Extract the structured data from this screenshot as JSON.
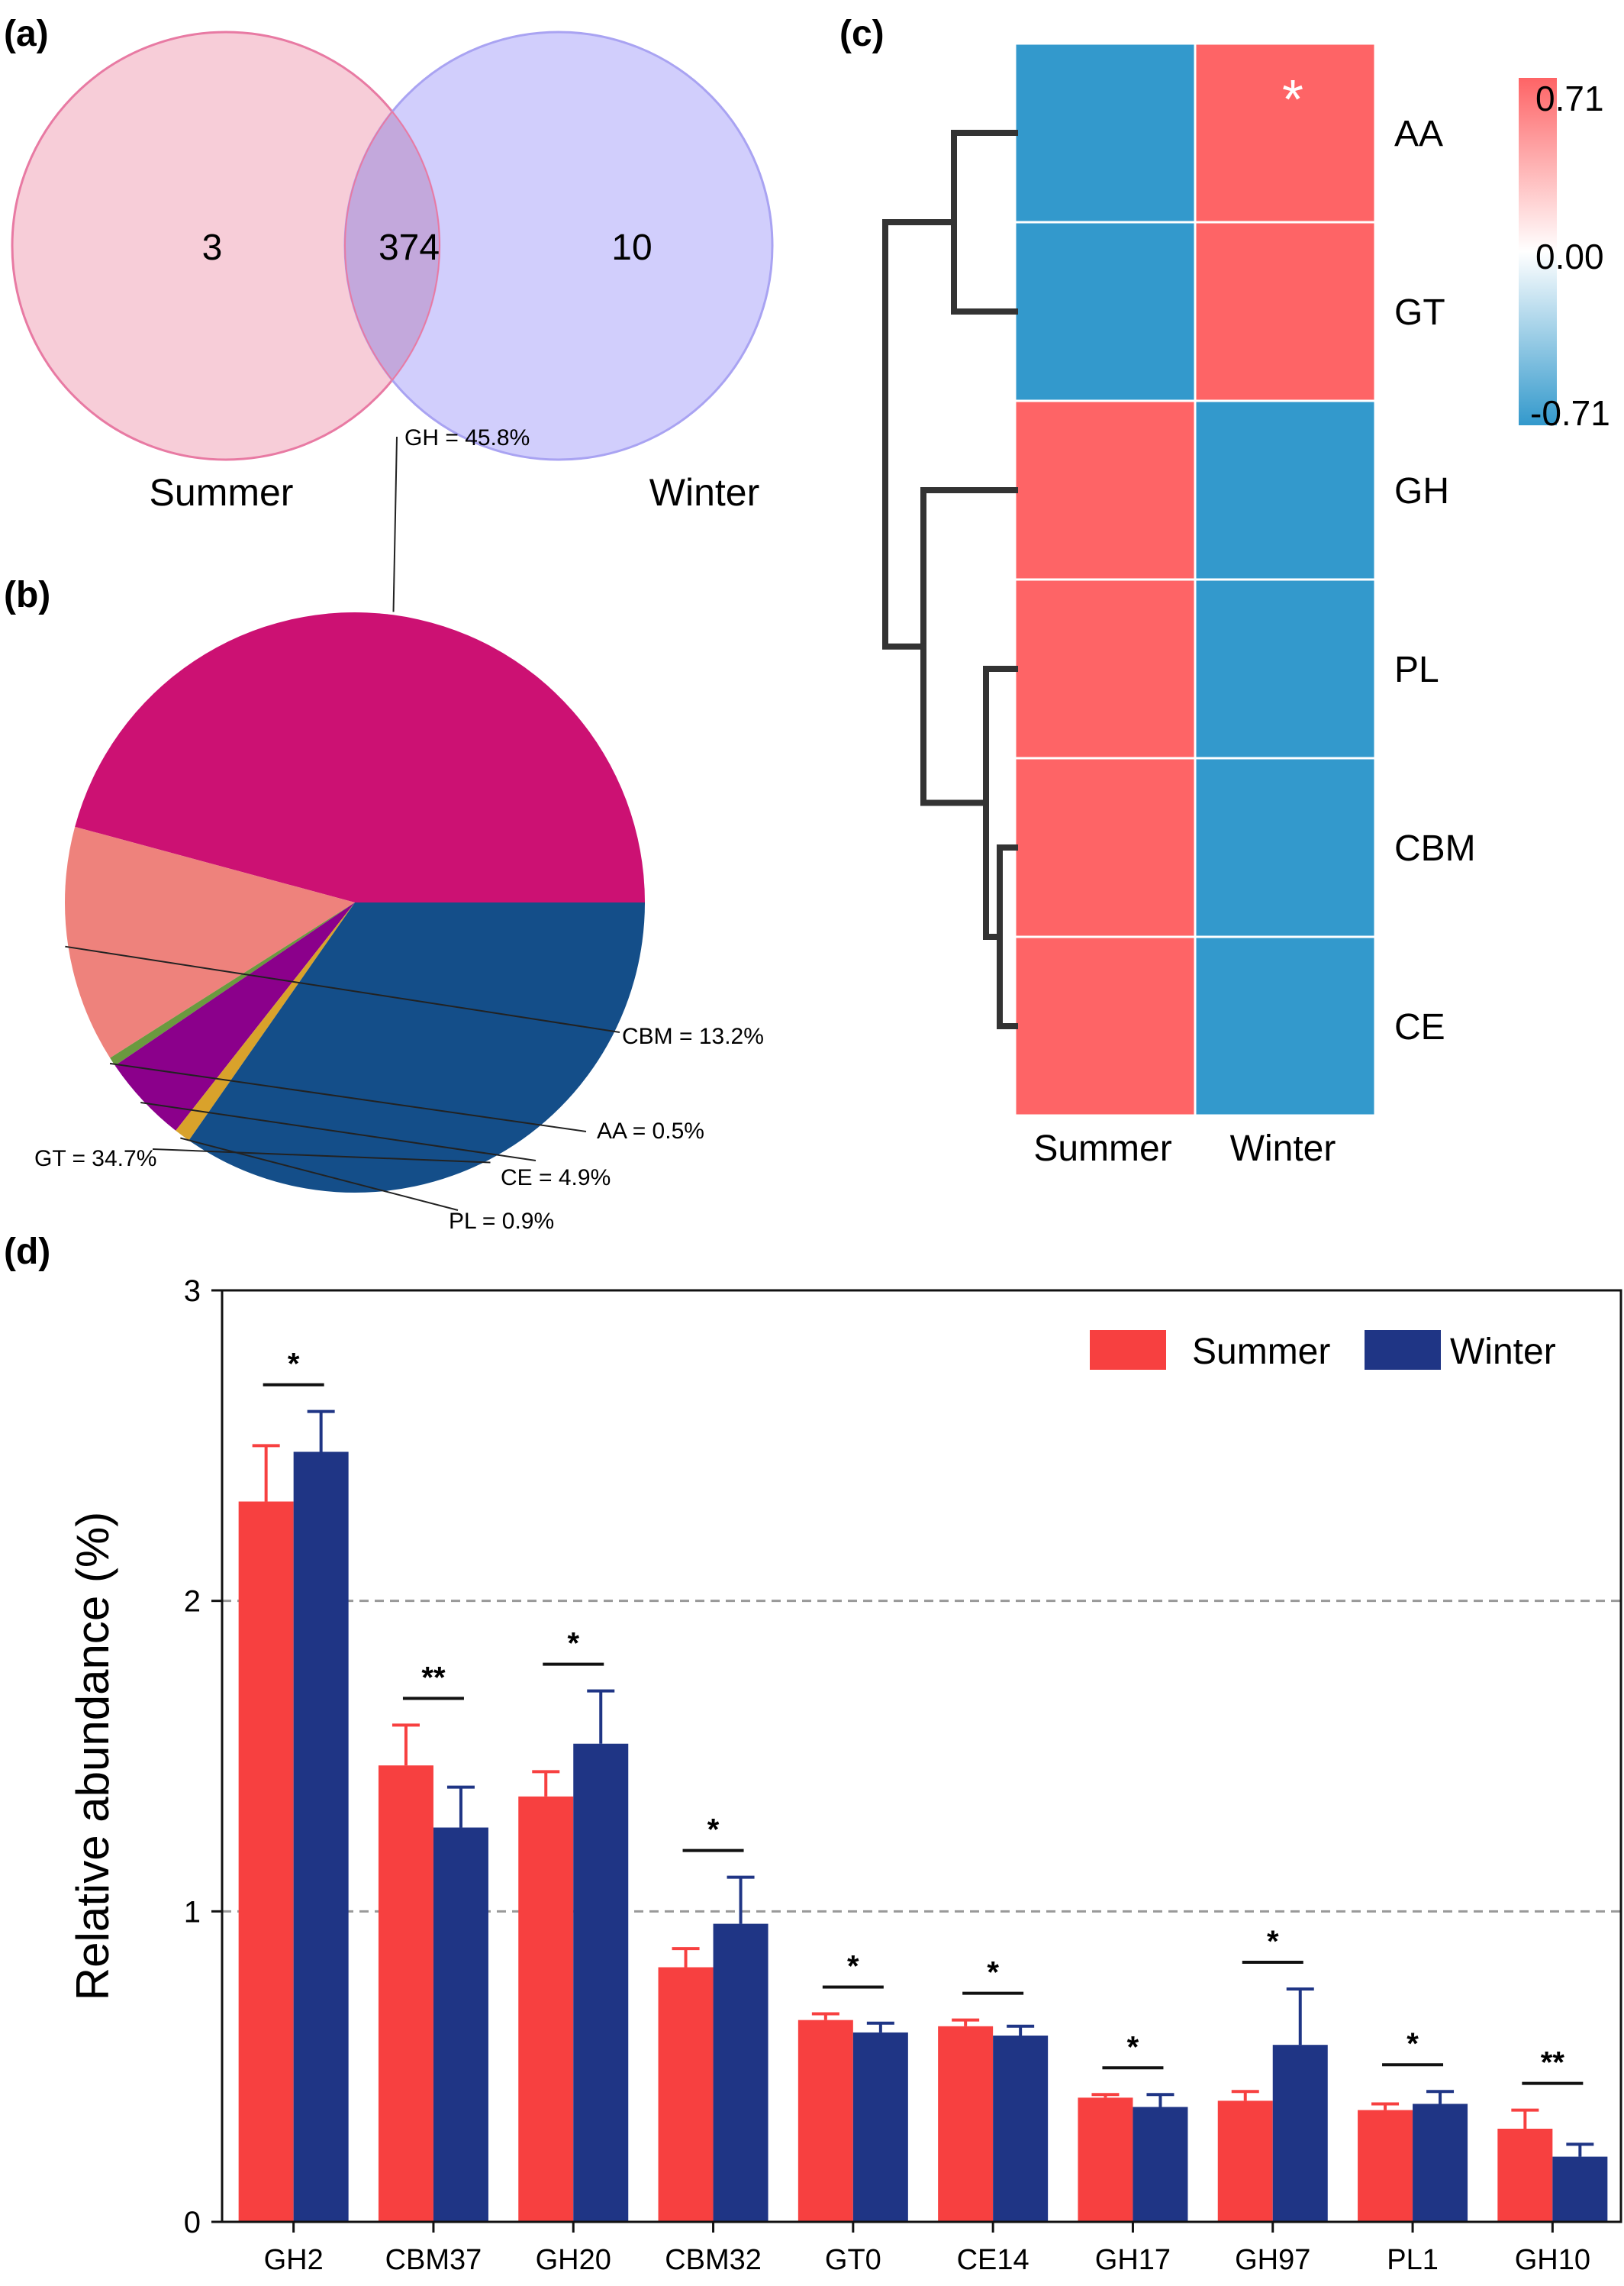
{
  "panel_labels": {
    "a": "(a)",
    "b": "(b)",
    "c": "(c)",
    "d": "(d)"
  },
  "colors": {
    "summer": "#f74040",
    "winter": "#1f3585",
    "venn_summer_fill": "#f7cdd8",
    "venn_summer_stroke": "#e87aa3",
    "venn_winter_fill": "#c9c6fb",
    "venn_winter_stroke": "#a9a3f2",
    "venn_overlap_fill": "#c3a8dc",
    "heat_high": "#fe6466",
    "heat_low": "#3399cc",
    "pie": {
      "GH": "#cc1173",
      "GT": "#144e89",
      "CBM": "#ee827c",
      "CE": "#8b008b",
      "PL": "#d9a22b",
      "AA": "#6a9a3f"
    }
  },
  "chart_data": [
    {
      "type": "venn",
      "sets": [
        {
          "name": "Summer",
          "only": 3
        },
        {
          "name": "Winter",
          "only": 10
        }
      ],
      "intersection": 374
    },
    {
      "type": "pie",
      "slices": [
        {
          "name": "GH",
          "value": 45.8,
          "label": "GH = 45.8%"
        },
        {
          "name": "CBM",
          "value": 13.2,
          "label": "CBM = 13.2%"
        },
        {
          "name": "AA",
          "value": 0.5,
          "label": "AA = 0.5%"
        },
        {
          "name": "CE",
          "value": 4.9,
          "label": "CE = 4.9%"
        },
        {
          "name": "PL",
          "value": 0.9,
          "label": "PL = 0.9%"
        },
        {
          "name": "GT",
          "value": 34.7,
          "label": "GT = 34.7%"
        }
      ]
    },
    {
      "type": "heatmap",
      "rows": [
        "AA",
        "GT",
        "GH",
        "PL",
        "CBM",
        "CE"
      ],
      "columns": [
        "Summer",
        "Winter"
      ],
      "values": [
        [
          -0.71,
          0.71
        ],
        [
          -0.71,
          0.71
        ],
        [
          0.71,
          -0.71
        ],
        [
          0.71,
          -0.71
        ],
        [
          0.71,
          -0.71
        ],
        [
          0.71,
          -0.71
        ]
      ],
      "significant": [
        [
          false,
          true
        ],
        [
          false,
          false
        ],
        [
          false,
          false
        ],
        [
          false,
          false
        ],
        [
          false,
          false
        ],
        [
          false,
          false
        ]
      ],
      "significance_mark": "*",
      "colorbar": {
        "max": 0.71,
        "mid": 0.0,
        "min": -0.71,
        "labels": [
          "0.71",
          "0.00",
          "-0.71"
        ]
      },
      "dendrogram": "rows"
    },
    {
      "type": "bar",
      "categories": [
        "GH2",
        "CBM37",
        "GH20",
        "CBM32",
        "GT0",
        "CE14",
        "GH17",
        "GH97",
        "PL1",
        "GH10"
      ],
      "series": [
        {
          "name": "Summer",
          "values": [
            2.32,
            1.47,
            1.37,
            0.82,
            0.65,
            0.63,
            0.4,
            0.39,
            0.36,
            0.3
          ],
          "errors": [
            0.18,
            0.13,
            0.08,
            0.06,
            0.02,
            0.02,
            0.01,
            0.03,
            0.02,
            0.06
          ]
        },
        {
          "name": "Winter",
          "values": [
            2.48,
            1.27,
            1.54,
            0.96,
            0.61,
            0.6,
            0.37,
            0.57,
            0.38,
            0.21
          ],
          "errors": [
            0.13,
            0.13,
            0.17,
            0.15,
            0.03,
            0.03,
            0.04,
            0.18,
            0.04,
            0.04
          ]
        }
      ],
      "significance": [
        "*",
        "**",
        "*",
        "*",
        "*",
        "*",
        "*",
        "*",
        "*",
        "**"
      ],
      "ylabel": "Relative abundance (%)",
      "xlabel": "",
      "ylim": [
        0,
        3
      ],
      "yticks": [
        0,
        1,
        2,
        3
      ],
      "grid": "dashed at 1 and 2",
      "legend": "top-right"
    }
  ]
}
